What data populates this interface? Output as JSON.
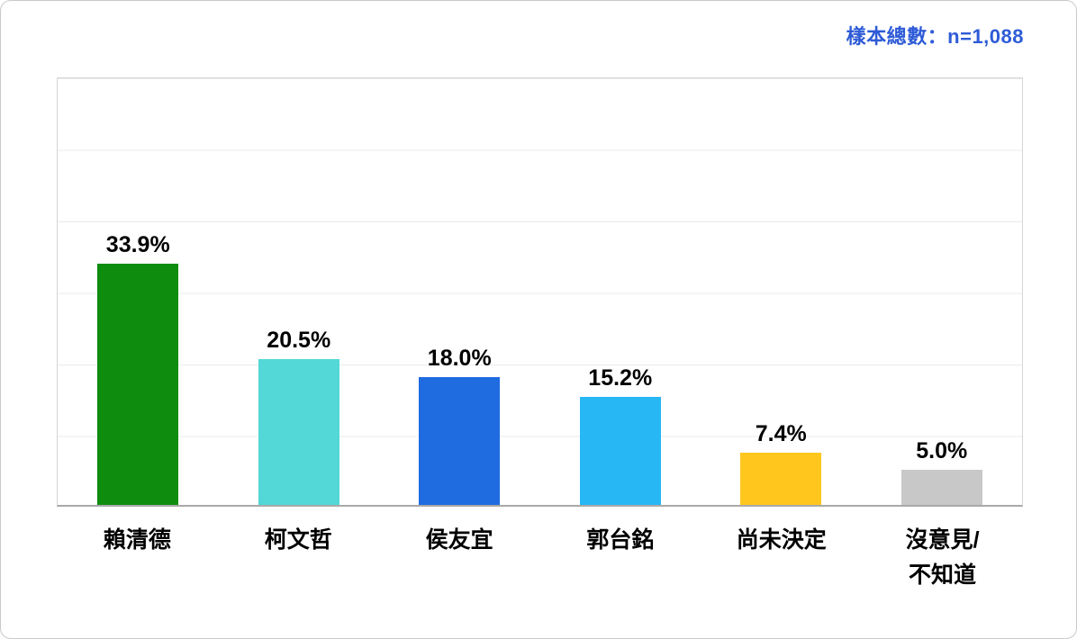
{
  "header": {
    "sample_note": "樣本總數：n=1,088",
    "sample_note_color": "#2e5bd7"
  },
  "chart_data": {
    "type": "bar",
    "title": "",
    "xlabel": "",
    "ylabel": "",
    "categories": [
      "賴清德",
      "柯文哲",
      "侯友宜",
      "郭台銘",
      "尚未決定",
      "沒意見/\n不知道"
    ],
    "values": [
      33.9,
      20.5,
      18.0,
      15.2,
      7.4,
      5.0
    ],
    "value_labels": [
      "33.9%",
      "20.5%",
      "18.0%",
      "15.2%",
      "7.4%",
      "5.0%"
    ],
    "colors": [
      "#0e8c0e",
      "#53d7d7",
      "#1f6be0",
      "#27b7f5",
      "#ffc61e",
      "#c8c8c8"
    ],
    "ylim": [
      0,
      60
    ],
    "gridline_interval": 10,
    "grid": "horizontal",
    "legend": "none",
    "plot_border_color": "#d6d6d6",
    "gridline_color": "#ebebeb"
  }
}
